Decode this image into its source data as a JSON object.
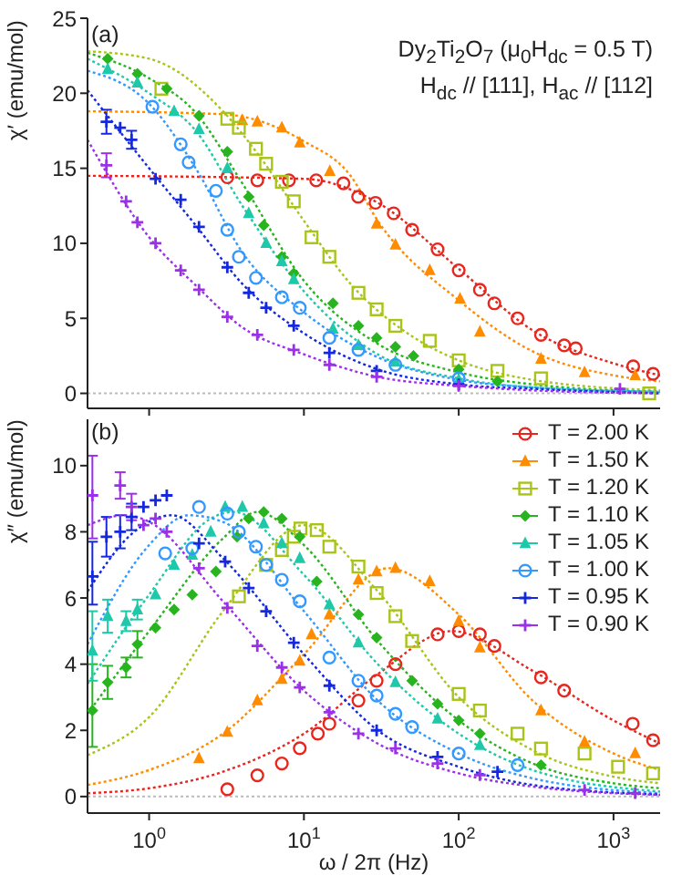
{
  "chart_data": [
    {
      "type": "scatter",
      "ylabel": "χ′ (emu/mol)",
      "annotations": [
        "(a)",
        "Dy$_{2}$Ti$_{2}$O$_{7}$ (μ$_{0}$H$_{dc}$ = 0.5 T)",
        "H$_{dc}$ // [111], H$_{ac}$ // [112]"
      ],
      "log": "x",
      "xlim": [
        0.4,
        2000
      ],
      "xticks": [
        {
          "value": 1,
          "label": null
        },
        {
          "value": 10,
          "label": null
        },
        {
          "value": 100,
          "label": null
        },
        {
          "value": 1000,
          "label": null
        }
      ],
      "ylim": [
        -1,
        25
      ],
      "yticks": [
        0,
        5,
        10,
        15,
        20,
        25
      ],
      "tick_labels": "y",
      "ref_lines": [
        {
          "axis": "y",
          "value": 0,
          "color": "#bbbbbb",
          "line_style": "dotted"
        }
      ],
      "series": [
        {
          "color": "#e8261e",
          "marker": "circle",
          "x": [
            3.2,
            5,
            8,
            12,
            18,
            22.4,
            29,
            38,
            50,
            73,
            100,
            137,
            170,
            240,
            340,
            480,
            570,
            1340,
            1800
          ],
          "values": [
            14.4,
            14.2,
            14.2,
            14.2,
            14.0,
            13.1,
            12.7,
            12.0,
            10.9,
            9.6,
            8.2,
            6.9,
            6.0,
            5.0,
            3.9,
            3.2,
            3.0,
            1.8,
            1.3
          ]
        },
        {
          "color": "#ff8c00",
          "marker": "triangle",
          "x": [
            4,
            5,
            7.2,
            9.4,
            14.7,
            29.5,
            39,
            65,
            102,
            137,
            340,
            650,
            1380
          ],
          "values": [
            18.2,
            18.1,
            17.7,
            16.7,
            14.8,
            11.3,
            9.9,
            8.2,
            6.3,
            4.1,
            2.3,
            1.4,
            1.2
          ]
        },
        {
          "color": "#a8c41a",
          "marker": "square",
          "x": [
            1.2,
            3.2,
            3.8,
            4.9,
            5.7,
            7.2,
            8.6,
            11.2,
            14.6,
            22.5,
            29.5,
            39,
            65,
            100,
            178,
            340,
            1700
          ],
          "values": [
            20.3,
            18.3,
            17.7,
            16.3,
            15.3,
            14.1,
            12.8,
            10.4,
            9.1,
            6.7,
            5.6,
            4.5,
            3.5,
            2.2,
            1.5,
            1.0,
            0.0
          ]
        },
        {
          "color": "#28b41e",
          "marker": "diamond",
          "x": [
            0.54,
            0.84,
            1.3,
            2.1,
            3.2,
            4.4,
            5.5,
            7.2,
            8.6,
            15.4,
            22.5,
            29.5,
            39,
            51,
            100,
            178
          ],
          "values": [
            22.3,
            21.3,
            20.3,
            18.5,
            16.1,
            13.1,
            11.2,
            9.1,
            8.0,
            6.0,
            4.5,
            3.7,
            3.1,
            2.5,
            1.6,
            0.8
          ]
        },
        {
          "color": "#1ec8a8",
          "marker": "triangle",
          "x": [
            0.54,
            0.84,
            1.45,
            2.1,
            3.2,
            4.4,
            5.7,
            7.2,
            8.6,
            15.4,
            22.5,
            39,
            100
          ],
          "values": [
            21.6,
            20.7,
            18.8,
            17.6,
            15.0,
            12.0,
            10.0,
            8.8,
            7.6,
            4.3,
            3.2,
            2.1,
            0.9
          ]
        },
        {
          "color": "#3399ff",
          "marker": "circle",
          "x": [
            1.05,
            1.6,
            1.8,
            2.7,
            3.2,
            3.8,
            4.9,
            7.2,
            9.4,
            14.6,
            22.5,
            39,
            100
          ],
          "values": [
            19.1,
            16.6,
            15.4,
            13.5,
            10.9,
            9.1,
            7.7,
            6.4,
            5.7,
            3.7,
            2.9,
            1.9,
            1.0
          ]
        },
        {
          "color": "#1428e0",
          "marker": "cross",
          "x": [
            0.53,
            0.65,
            0.77,
            1.1,
            1.6,
            2.1,
            3.2,
            4.4,
            5.7,
            8.6,
            14.6,
            29.5,
            100
          ],
          "values": [
            18.1,
            17.7,
            16.9,
            14.3,
            12.9,
            11.1,
            8.4,
            6.7,
            5.7,
            4.5,
            2.7,
            1.5,
            0.6
          ],
          "errors": [
            0.8,
            null,
            0.6,
            null,
            null,
            null,
            null,
            null,
            null,
            null,
            null,
            null,
            null
          ]
        },
        {
          "color": "#9b30e8",
          "marker": "cross",
          "x": [
            0.53,
            0.71,
            0.84,
            1.1,
            1.6,
            2.1,
            3.2,
            5,
            8.6,
            14.6,
            29.5,
            100,
            1100
          ],
          "values": [
            15.2,
            12.8,
            11.4,
            10.0,
            8.2,
            6.9,
            5.1,
            3.9,
            2.9,
            1.9,
            1.1,
            0.5,
            0.3
          ],
          "errors": [
            0.8,
            null,
            null,
            null,
            null,
            null,
            null,
            null,
            null,
            null,
            null,
            null,
            null
          ]
        },
        {
          "type": "line",
          "color": "#e8261e",
          "line_style": "dotted",
          "marker": "none",
          "x": [
            0.4,
            10,
            30,
            100,
            300,
            1000,
            2000
          ],
          "values": [
            14.5,
            14.3,
            12.7,
            8.3,
            4.2,
            2.0,
            1.2
          ]
        },
        {
          "type": "line",
          "color": "#ff8c00",
          "line_style": "dotted",
          "marker": "none",
          "x": [
            0.4,
            3,
            10,
            20,
            30,
            100,
            300,
            1000,
            2000
          ],
          "values": [
            18.8,
            18.6,
            16.8,
            14.5,
            11.5,
            6.2,
            2.8,
            1.2,
            0.8
          ]
        },
        {
          "type": "line",
          "color": "#a8c41a",
          "line_style": "dotted",
          "marker": "none",
          "x": [
            0.4,
            1,
            3,
            5,
            10,
            20,
            50,
            100,
            300,
            2000
          ],
          "values": [
            22.8,
            22.3,
            18.8,
            16.0,
            11.5,
            7.3,
            3.8,
            2.2,
            0.9,
            0.2
          ]
        },
        {
          "type": "line",
          "color": "#28b41e",
          "line_style": "dotted",
          "marker": "none",
          "x": [
            0.4,
            1,
            2,
            4,
            10,
            30,
            100,
            300,
            2000
          ],
          "values": [
            22.7,
            21.0,
            18.7,
            14.0,
            7.5,
            3.3,
            1.4,
            0.6,
            0.1
          ]
        },
        {
          "type": "line",
          "color": "#1ec8a8",
          "line_style": "dotted",
          "marker": "none",
          "x": [
            0.4,
            1,
            2,
            4,
            10,
            30,
            100,
            300,
            2000
          ],
          "values": [
            22.3,
            20.0,
            17.5,
            12.5,
            6.8,
            2.6,
            1.0,
            0.4,
            0.1
          ]
        },
        {
          "type": "line",
          "color": "#3399ff",
          "line_style": "dotted",
          "marker": "none",
          "x": [
            0.4,
            1,
            2,
            4,
            10,
            30,
            100,
            300,
            2000
          ],
          "values": [
            21.5,
            19.3,
            15.0,
            9.4,
            5.4,
            2.4,
            0.9,
            0.4,
            0.1
          ]
        },
        {
          "type": "line",
          "color": "#1428e0",
          "line_style": "dotted",
          "marker": "none",
          "x": [
            0.4,
            1,
            2,
            4,
            10,
            30,
            100,
            300,
            2000
          ],
          "values": [
            20.2,
            15.0,
            11.2,
            7.3,
            4.0,
            1.6,
            0.6,
            0.3,
            0.0
          ]
        },
        {
          "type": "line",
          "color": "#9b30e8",
          "line_style": "dotted",
          "marker": "none",
          "x": [
            0.4,
            1,
            2,
            4,
            10,
            30,
            100,
            300,
            2000
          ],
          "values": [
            16.9,
            10.4,
            7.2,
            4.4,
            2.6,
            1.1,
            0.5,
            0.2,
            0.0
          ]
        }
      ]
    },
    {
      "type": "scatter",
      "xlabel": "ω / 2π (Hz)",
      "ylabel": "χ″ (emu/mol)",
      "annotations": [
        "(b)"
      ],
      "log": "x",
      "xlim": [
        0.4,
        2000
      ],
      "xticks": [
        {
          "value": 1,
          "label": "10$^{0}$"
        },
        {
          "value": 10,
          "label": "10$^{1}$"
        },
        {
          "value": 100,
          "label": "10$^{2}$"
        },
        {
          "value": 1000,
          "label": "10$^{3}$"
        }
      ],
      "ylim": [
        -0.5,
        11.4
      ],
      "yticks": [
        0,
        2,
        4,
        6,
        8,
        10
      ],
      "legend": "top right",
      "ref_lines": [
        {
          "axis": "y",
          "value": 0,
          "color": "#bbbbbb",
          "line_style": "dotted"
        }
      ],
      "series": [
        {
          "name": "T = 2.00 K",
          "color": "#e8261e",
          "marker": "circle",
          "x": [
            3.2,
            5,
            7.2,
            9.4,
            12.3,
            14.6,
            22.5,
            29.5,
            39,
            73,
            100,
            137,
            170,
            340,
            480,
            1330,
            1800
          ],
          "values": [
            0.22,
            0.64,
            1.0,
            1.46,
            1.9,
            2.2,
            2.9,
            3.5,
            4.0,
            4.9,
            5.0,
            4.9,
            4.55,
            3.6,
            3.2,
            2.2,
            1.7
          ]
        },
        {
          "name": "T = 1.50 K",
          "color": "#ff8c00",
          "marker": "triangle",
          "x": [
            2.1,
            3.2,
            5,
            7.2,
            9.4,
            11.2,
            14.6,
            22.5,
            29.5,
            39,
            65,
            100,
            137,
            340,
            650,
            1380
          ],
          "values": [
            1.15,
            1.95,
            2.9,
            3.55,
            4.1,
            4.9,
            5.5,
            6.55,
            6.8,
            6.9,
            6.5,
            5.3,
            4.5,
            2.6,
            1.65,
            1.3
          ]
        },
        {
          "name": "T = 1.20 K",
          "color": "#a8c41a",
          "marker": "square",
          "x": [
            3.8,
            5.7,
            7.2,
            8.6,
            9.5,
            12.1,
            14.6,
            22.5,
            29.5,
            39,
            50,
            100,
            137,
            240,
            340,
            650,
            1070,
            1800
          ],
          "values": [
            6.05,
            7.0,
            7.45,
            7.85,
            8.1,
            8.05,
            7.55,
            6.95,
            6.15,
            5.45,
            4.7,
            3.1,
            2.6,
            1.9,
            1.45,
            1.3,
            0.9,
            0.7
          ]
        },
        {
          "name": "T = 1.10 K",
          "color": "#28b41e",
          "marker": "diamond",
          "x": [
            0.43,
            0.54,
            0.71,
            0.84,
            1.1,
            1.45,
            1.9,
            2.7,
            3.7,
            4.4,
            5.5,
            7.2,
            9.4,
            12.1,
            22.5,
            29.5,
            50,
            73,
            100,
            137,
            340
          ],
          "values": [
            2.6,
            3.45,
            3.9,
            4.6,
            5.1,
            5.65,
            6.1,
            6.8,
            7.85,
            8.4,
            8.6,
            8.4,
            7.85,
            6.5,
            5.5,
            4.8,
            3.5,
            2.8,
            2.3,
            1.9,
            0.95
          ],
          "errors": [
            [
              1.5,
              4.0
            ],
            0.5,
            0.3,
            0.4,
            null,
            null,
            null,
            null,
            null,
            null,
            null,
            null,
            null,
            null,
            null,
            null,
            null,
            null,
            null,
            null,
            null
          ]
        },
        {
          "name": "T = 1.05 K",
          "color": "#1ec8a8",
          "marker": "triangle",
          "x": [
            0.43,
            0.54,
            0.71,
            0.84,
            1.1,
            1.45,
            1.9,
            2.5,
            3.1,
            4,
            5.5,
            7.2,
            9.4,
            14.6,
            22.5,
            39,
            73,
            137
          ],
          "values": [
            4.4,
            5.45,
            5.3,
            5.65,
            6.1,
            7.0,
            7.3,
            8.0,
            8.75,
            8.75,
            8.25,
            7.65,
            7.2,
            5.8,
            4.65,
            3.45,
            2.35,
            1.55
          ],
          "errors": [
            [
              3.5,
              5.6
            ],
            0.5,
            0.3,
            0.3,
            null,
            null,
            null,
            null,
            null,
            null,
            null,
            null,
            null,
            null,
            null,
            null,
            null,
            null
          ]
        },
        {
          "name": "T = 1.00 K",
          "color": "#3399ff",
          "marker": "circle",
          "x": [
            1.27,
            1.9,
            2.1,
            3.2,
            3.8,
            4.9,
            5.7,
            7.2,
            9.4,
            14.6,
            22.5,
            29.5,
            39,
            50,
            100,
            240
          ],
          "values": [
            7.35,
            7.5,
            8.75,
            8.55,
            8.0,
            7.55,
            7.0,
            6.55,
            5.9,
            4.2,
            3.5,
            3.05,
            2.5,
            2.1,
            1.3,
            0.95
          ]
        },
        {
          "name": "T = 0.95 K",
          "color": "#1428e0",
          "marker": "cross",
          "x": [
            0.43,
            0.53,
            0.65,
            0.77,
            0.92,
            1.1,
            1.3,
            2.1,
            3.1,
            4.4,
            5.7,
            8.6,
            14.6,
            29.5,
            73,
            178
          ],
          "values": [
            6.65,
            7.85,
            8.0,
            8.45,
            8.75,
            8.95,
            9.1,
            7.65,
            7.1,
            6.3,
            5.6,
            4.65,
            3.35,
            2.0,
            1.2,
            0.75
          ],
          "errors": [
            [
              5.8,
              7.7
            ],
            0.6,
            0.5,
            0.4,
            null,
            null,
            null,
            null,
            null,
            null,
            null,
            null,
            null,
            null,
            null,
            null
          ]
        },
        {
          "name": "T = 0.90 K",
          "color": "#9b30e8",
          "marker": "cross",
          "x": [
            0.43,
            0.65,
            0.77,
            0.92,
            1.1,
            1.3,
            2.1,
            3.2,
            5,
            7.2,
            9.4,
            14.6,
            22.5,
            39,
            73,
            137,
            650,
            1380
          ],
          "values": [
            9.1,
            9.4,
            8.75,
            8.2,
            8.4,
            8.0,
            6.9,
            5.7,
            4.55,
            3.9,
            3.3,
            2.55,
            1.9,
            1.45,
            1.0,
            0.65,
            0.2,
            0.1
          ],
          "errors": [
            [
              7.8,
              10.3
            ],
            0.4,
            0.4,
            null,
            null,
            null,
            null,
            null,
            null,
            null,
            null,
            null,
            null,
            null,
            null,
            null,
            null,
            null
          ]
        },
        {
          "type": "line",
          "color": "#e8261e",
          "line_style": "dotted",
          "marker": "none",
          "x": [
            0.4,
            1,
            3,
            10,
            30,
            90,
            300,
            1000,
            2000
          ],
          "values": [
            0.1,
            0.25,
            0.75,
            1.9,
            3.7,
            5.0,
            3.8,
            2.3,
            1.6
          ]
        },
        {
          "type": "line",
          "color": "#ff8c00",
          "line_style": "dotted",
          "marker": "none",
          "x": [
            0.4,
            1,
            3,
            10,
            35,
            100,
            300,
            1000,
            2000
          ],
          "values": [
            0.35,
            0.8,
            1.9,
            4.3,
            6.9,
            5.5,
            2.9,
            1.3,
            0.8
          ]
        },
        {
          "type": "line",
          "color": "#a8c41a",
          "line_style": "dotted",
          "marker": "none",
          "x": [
            0.4,
            1,
            3,
            10,
            30,
            100,
            300,
            1000,
            2000
          ],
          "values": [
            1.25,
            2.4,
            5.6,
            8.2,
            6.2,
            3.0,
            1.4,
            0.6,
            0.4
          ]
        },
        {
          "type": "line",
          "color": "#28b41e",
          "line_style": "dotted",
          "marker": "none",
          "x": [
            0.4,
            1,
            3,
            5,
            10,
            30,
            100,
            300,
            1000,
            2000
          ],
          "values": [
            2.5,
            5.0,
            7.8,
            8.6,
            7.6,
            4.7,
            2.3,
            1.0,
            0.4,
            0.25
          ]
        },
        {
          "type": "line",
          "color": "#1ec8a8",
          "line_style": "dotted",
          "marker": "none",
          "x": [
            0.4,
            1,
            2.5,
            3.5,
            10,
            30,
            100,
            300,
            2000
          ],
          "values": [
            3.4,
            6.1,
            8.4,
            8.6,
            6.7,
            4.0,
            1.9,
            0.8,
            0.15
          ]
        },
        {
          "type": "line",
          "color": "#3399ff",
          "line_style": "dotted",
          "marker": "none",
          "x": [
            0.4,
            1,
            1.8,
            3,
            10,
            30,
            100,
            300,
            2000
          ],
          "values": [
            4.6,
            7.6,
            8.5,
            8.3,
            5.6,
            2.9,
            1.3,
            0.55,
            0.1
          ]
        },
        {
          "type": "line",
          "color": "#1428e0",
          "line_style": "dotted",
          "marker": "none",
          "x": [
            0.4,
            0.8,
            1.4,
            3,
            10,
            30,
            100,
            300,
            2000
          ],
          "values": [
            6.2,
            8.0,
            8.5,
            7.2,
            4.3,
            2.0,
            0.9,
            0.35,
            0.06
          ]
        },
        {
          "type": "line",
          "color": "#9b30e8",
          "line_style": "dotted",
          "marker": "none",
          "x": [
            0.4,
            0.7,
            1,
            3,
            10,
            30,
            100,
            300,
            2000
          ],
          "values": [
            8.2,
            8.5,
            8.3,
            5.9,
            3.2,
            1.6,
            0.7,
            0.3,
            0.05
          ]
        }
      ]
    }
  ]
}
